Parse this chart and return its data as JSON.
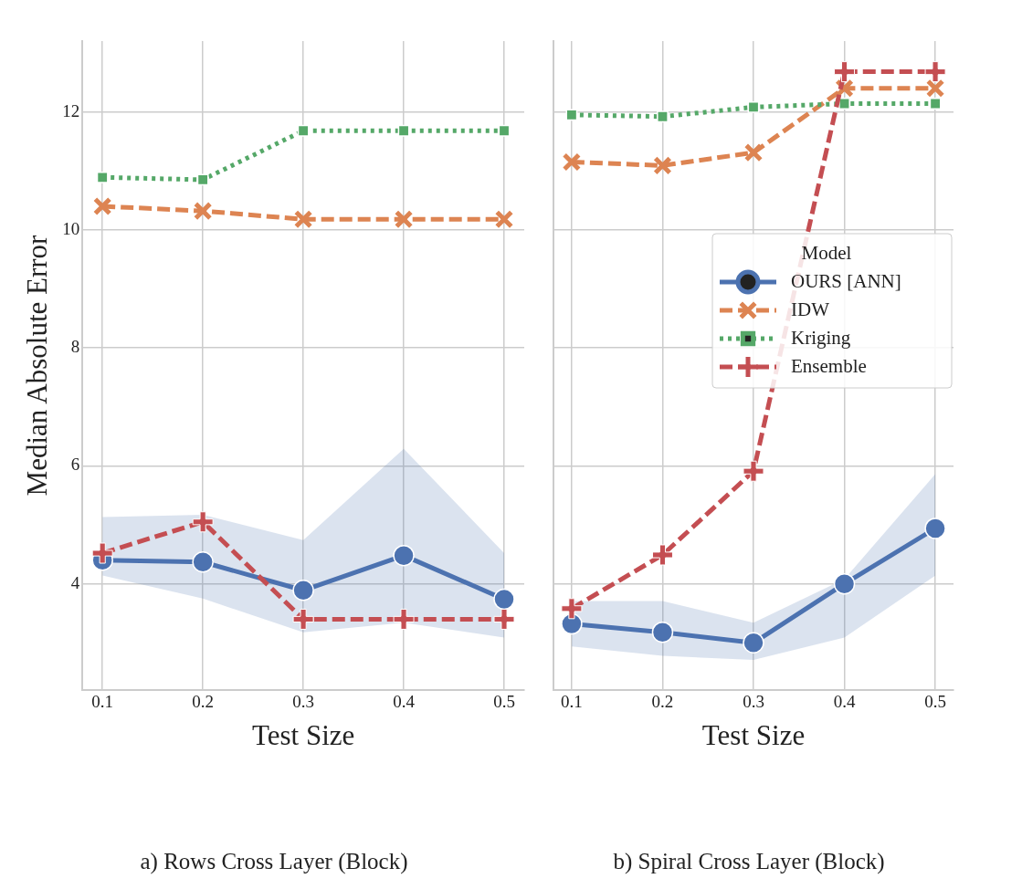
{
  "chart_data": [
    {
      "type": "line",
      "title": "a) Rows Cross Layer (Block)",
      "xlabel": "Test Size",
      "ylabel": "Median Absolute Error",
      "x": [
        0.1,
        0.2,
        0.3,
        0.4,
        0.5
      ],
      "xlim": [
        0.08,
        0.52
      ],
      "xticks": [
        0.1,
        0.2,
        0.3,
        0.4,
        0.5
      ],
      "ylim": [
        2.2,
        13.2
      ],
      "yticks": [
        4,
        6,
        8,
        10,
        12
      ],
      "grid": true,
      "legend": false,
      "series": [
        {
          "color": "#4c72b0",
          "marker": "circle",
          "line_style": "solid",
          "values": [
            4.4,
            4.37,
            3.89,
            4.48,
            3.74
          ],
          "lower": [
            4.14,
            3.75,
            3.18,
            3.34,
            3.09
          ],
          "upper": [
            5.13,
            5.17,
            4.74,
            6.29,
            4.52
          ]
        },
        {
          "color": "#dd8452",
          "marker": "x",
          "line_style": "dashed",
          "values": [
            10.4,
            10.32,
            10.18,
            10.18,
            10.18
          ]
        },
        {
          "color": "#55a868",
          "marker": "square",
          "line_style": "dotted",
          "values": [
            10.89,
            10.85,
            11.68,
            11.68,
            11.68
          ]
        },
        {
          "color": "#c44e52",
          "marker": "cross",
          "line_style": "dashed",
          "values": [
            4.52,
            5.05,
            3.4,
            3.4,
            3.4
          ]
        }
      ]
    },
    {
      "type": "line",
      "title": "b) Spiral Cross Layer (Block)",
      "xlabel": "Test Size",
      "legend_title": "Model",
      "x": [
        0.1,
        0.2,
        0.3,
        0.4,
        0.5
      ],
      "xlim": [
        0.08,
        0.52
      ],
      "xticks": [
        0.1,
        0.2,
        0.3,
        0.4,
        0.5
      ],
      "ylim": [
        2.2,
        13.2
      ],
      "yticks": [
        4,
        6,
        8,
        10,
        12
      ],
      "grid": true,
      "legend": "right",
      "tick_labels": "x",
      "series": [
        {
          "name": "OURS [ANN]",
          "color": "#4c72b0",
          "marker": "circle",
          "line_style": "solid",
          "values": [
            3.32,
            3.18,
            3.0,
            4.0,
            4.94
          ],
          "lower": [
            2.94,
            2.78,
            2.71,
            3.09,
            4.14
          ],
          "upper": [
            3.71,
            3.71,
            3.34,
            4.08,
            5.86
          ]
        },
        {
          "name": "IDW",
          "color": "#dd8452",
          "marker": "x",
          "line_style": "dashed",
          "values": [
            11.15,
            11.09,
            11.31,
            12.4,
            12.4
          ]
        },
        {
          "name": "Kriging",
          "color": "#55a868",
          "marker": "square",
          "line_style": "dotted",
          "values": [
            11.95,
            11.92,
            12.08,
            12.14,
            12.14
          ]
        },
        {
          "name": "Ensemble",
          "color": "#c44e52",
          "marker": "cross",
          "line_style": "dashed",
          "values": [
            3.58,
            4.49,
            5.91,
            12.68,
            12.68
          ]
        }
      ]
    }
  ]
}
